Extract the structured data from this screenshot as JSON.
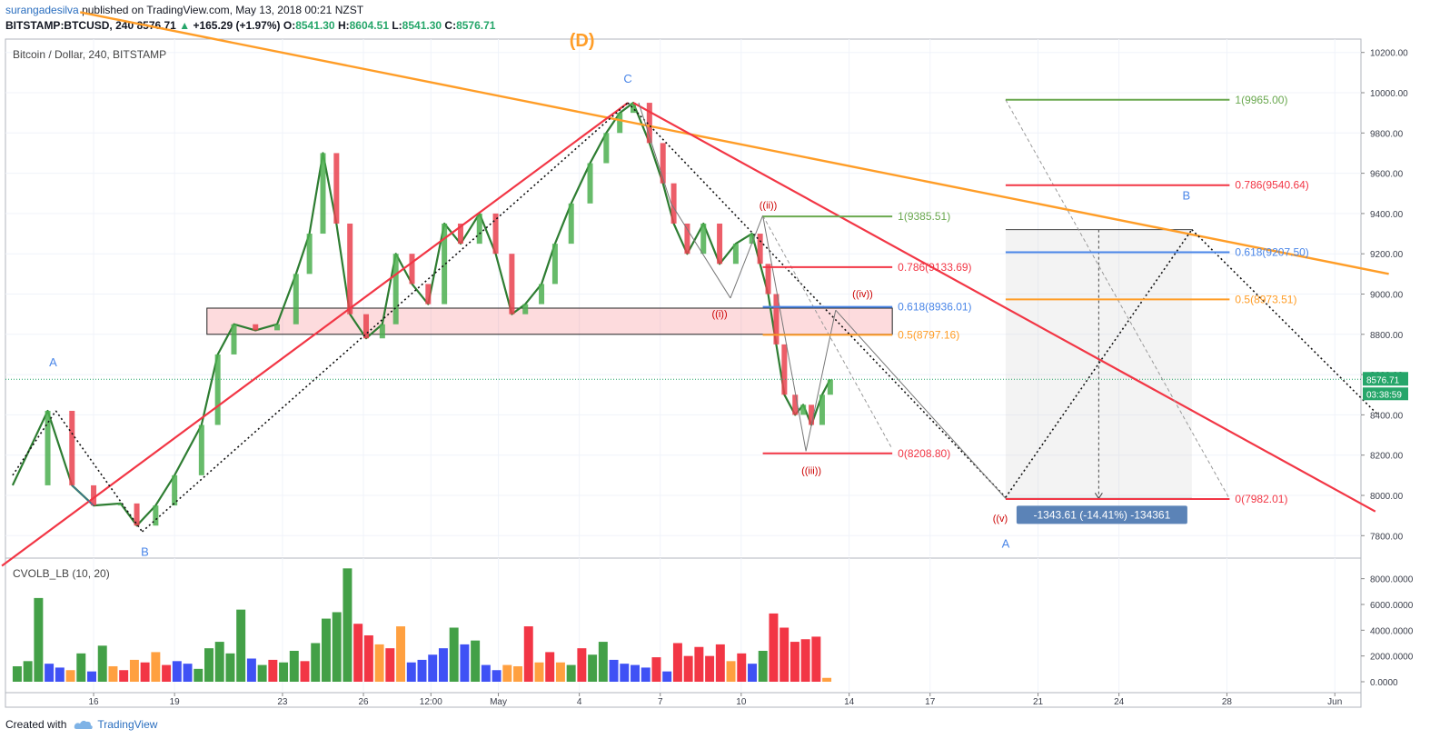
{
  "header": {
    "user": "surangadesilva",
    "published": "published on TradingView.com, May 13, 2018 00:21 NZST",
    "symbol": "BITSTAMP:BTCUSD, 240",
    "price": "8576.71",
    "arrow": "▲",
    "change": "+165.29 (+1.97%)",
    "o_label": "O:",
    "o_val": "8541.30",
    "h_label": "H:",
    "h_val": "8604.51",
    "l_label": "L:",
    "l_val": "8541.30",
    "c_label": "C:",
    "c_val": "8576.71"
  },
  "footer": {
    "created": "Created with",
    "brand": "TradingView",
    "logo_icon": "cloud-logo-icon"
  },
  "chart_data": {
    "type": "line",
    "title": "Bitcoin / Dollar, 240, BITSTAMP",
    "volume_title": "CVOLB_LB (10, 20)",
    "last_price": "8576.71",
    "countdown": "03:38:59",
    "ylim": [
      7700,
      10300
    ],
    "y_ticks": [
      "10200.00",
      "10000.00",
      "9800.00",
      "9600.00",
      "9400.00",
      "9200.00",
      "9000.00",
      "8800.00",
      "8600.00",
      "8400.00",
      "8200.00",
      "8000.00",
      "7800.00"
    ],
    "y_tick_values": [
      10200,
      10000,
      9800,
      9600,
      9400,
      9200,
      9000,
      8800,
      8600,
      8400,
      8200,
      8000,
      7800
    ],
    "vol_ylim": [
      0,
      9200
    ],
    "vol_ticks": [
      "8000.0000",
      "6000.0000",
      "4000.0000",
      "2000.0000",
      "0.0000"
    ],
    "vol_tick_values": [
      8000,
      6000,
      4000,
      2000,
      0
    ],
    "x_range_days": [
      12.8,
      32.9
    ],
    "x_ticks": [
      {
        "label": "16",
        "day": 16
      },
      {
        "label": "19",
        "day": 19
      },
      {
        "label": "23",
        "day": 23
      },
      {
        "label": "26",
        "day": 26
      },
      {
        "label": "12:00",
        "day": 28.5
      },
      {
        "label": "May",
        "day": 31
      },
      {
        "label": "4",
        "day": 34
      },
      {
        "label": "7",
        "day": 37
      },
      {
        "label": "10",
        "day": 40
      },
      {
        "label": "14",
        "day": 44
      },
      {
        "label": "17",
        "day": 47
      },
      {
        "label": "21",
        "day": 51
      },
      {
        "label": "24",
        "day": 54
      },
      {
        "label": "28",
        "day": 58
      },
      {
        "label": "Jun",
        "day": 62
      }
    ],
    "price_path": [
      [
        13.0,
        8050
      ],
      [
        14.3,
        8420
      ],
      [
        15.2,
        8050
      ],
      [
        16.0,
        7950
      ],
      [
        17.0,
        7960
      ],
      [
        17.6,
        7850
      ],
      [
        18.3,
        7950
      ],
      [
        19.0,
        8100
      ],
      [
        20.0,
        8350
      ],
      [
        20.6,
        8700
      ],
      [
        21.2,
        8850
      ],
      [
        22.0,
        8820
      ],
      [
        22.8,
        8850
      ],
      [
        23.5,
        9100
      ],
      [
        24.0,
        9300
      ],
      [
        24.5,
        9700
      ],
      [
        25.0,
        9350
      ],
      [
        25.5,
        8900
      ],
      [
        26.1,
        8780
      ],
      [
        26.7,
        8850
      ],
      [
        27.2,
        9200
      ],
      [
        27.8,
        9050
      ],
      [
        28.4,
        8950
      ],
      [
        29.0,
        9350
      ],
      [
        29.6,
        9250
      ],
      [
        30.3,
        9400
      ],
      [
        30.9,
        9200
      ],
      [
        31.5,
        8900
      ],
      [
        32.0,
        8950
      ],
      [
        32.6,
        9050
      ],
      [
        33.1,
        9250
      ],
      [
        33.7,
        9450
      ],
      [
        34.4,
        9650
      ],
      [
        35.0,
        9800
      ],
      [
        35.5,
        9900
      ],
      [
        36.0,
        9950
      ],
      [
        36.6,
        9750
      ],
      [
        37.1,
        9550
      ],
      [
        37.5,
        9350
      ],
      [
        38.0,
        9200
      ],
      [
        38.6,
        9350
      ],
      [
        39.2,
        9150
      ],
      [
        39.8,
        9250
      ],
      [
        40.4,
        9300
      ],
      [
        40.7,
        9150
      ],
      [
        41.0,
        9000
      ],
      [
        41.3,
        8750
      ],
      [
        41.6,
        8500
      ],
      [
        42.0,
        8400
      ],
      [
        42.3,
        8450
      ],
      [
        42.6,
        8350
      ],
      [
        43.0,
        8500
      ],
      [
        43.3,
        8576
      ]
    ],
    "volume": [
      {
        "v": 1200,
        "c": "g"
      },
      {
        "v": 1600,
        "c": "g"
      },
      {
        "v": 6500,
        "c": "g"
      },
      {
        "v": 1400,
        "c": "b"
      },
      {
        "v": 1100,
        "c": "b"
      },
      {
        "v": 900,
        "c": "o"
      },
      {
        "v": 2200,
        "c": "g"
      },
      {
        "v": 800,
        "c": "b"
      },
      {
        "v": 2800,
        "c": "g"
      },
      {
        "v": 1200,
        "c": "o"
      },
      {
        "v": 900,
        "c": "r"
      },
      {
        "v": 1700,
        "c": "o"
      },
      {
        "v": 1500,
        "c": "r"
      },
      {
        "v": 2300,
        "c": "o"
      },
      {
        "v": 1300,
        "c": "r"
      },
      {
        "v": 1600,
        "c": "b"
      },
      {
        "v": 1400,
        "c": "b"
      },
      {
        "v": 1000,
        "c": "g"
      },
      {
        "v": 2600,
        "c": "g"
      },
      {
        "v": 3100,
        "c": "g"
      },
      {
        "v": 2200,
        "c": "g"
      },
      {
        "v": 5600,
        "c": "g"
      },
      {
        "v": 1800,
        "c": "b"
      },
      {
        "v": 1300,
        "c": "g"
      },
      {
        "v": 1700,
        "c": "r"
      },
      {
        "v": 1500,
        "c": "g"
      },
      {
        "v": 2400,
        "c": "g"
      },
      {
        "v": 1600,
        "c": "r"
      },
      {
        "v": 3000,
        "c": "g"
      },
      {
        "v": 4900,
        "c": "g"
      },
      {
        "v": 5400,
        "c": "g"
      },
      {
        "v": 8800,
        "c": "g"
      },
      {
        "v": 4500,
        "c": "r"
      },
      {
        "v": 3600,
        "c": "r"
      },
      {
        "v": 2900,
        "c": "o"
      },
      {
        "v": 2600,
        "c": "r"
      },
      {
        "v": 4300,
        "c": "o"
      },
      {
        "v": 1500,
        "c": "b"
      },
      {
        "v": 1700,
        "c": "b"
      },
      {
        "v": 2100,
        "c": "b"
      },
      {
        "v": 2600,
        "c": "b"
      },
      {
        "v": 4200,
        "c": "g"
      },
      {
        "v": 2900,
        "c": "b"
      },
      {
        "v": 3200,
        "c": "g"
      },
      {
        "v": 1300,
        "c": "b"
      },
      {
        "v": 900,
        "c": "b"
      },
      {
        "v": 1300,
        "c": "o"
      },
      {
        "v": 1200,
        "c": "o"
      },
      {
        "v": 4300,
        "c": "r"
      },
      {
        "v": 1500,
        "c": "o"
      },
      {
        "v": 2300,
        "c": "r"
      },
      {
        "v": 1500,
        "c": "o"
      },
      {
        "v": 1300,
        "c": "g"
      },
      {
        "v": 2600,
        "c": "r"
      },
      {
        "v": 2100,
        "c": "g"
      },
      {
        "v": 3100,
        "c": "g"
      },
      {
        "v": 1700,
        "c": "b"
      },
      {
        "v": 1400,
        "c": "b"
      },
      {
        "v": 1300,
        "c": "b"
      },
      {
        "v": 1100,
        "c": "b"
      },
      {
        "v": 1900,
        "c": "r"
      },
      {
        "v": 800,
        "c": "b"
      },
      {
        "v": 3000,
        "c": "r"
      },
      {
        "v": 2000,
        "c": "r"
      },
      {
        "v": 2700,
        "c": "r"
      },
      {
        "v": 2000,
        "c": "r"
      },
      {
        "v": 2900,
        "c": "r"
      },
      {
        "v": 1600,
        "c": "o"
      },
      {
        "v": 2200,
        "c": "r"
      },
      {
        "v": 1400,
        "c": "b"
      },
      {
        "v": 2400,
        "c": "g"
      },
      {
        "v": 5300,
        "c": "r"
      },
      {
        "v": 4200,
        "c": "r"
      },
      {
        "v": 3100,
        "c": "r"
      },
      {
        "v": 3300,
        "c": "r"
      },
      {
        "v": 3500,
        "c": "r"
      },
      {
        "v": 300,
        "c": "o"
      }
    ],
    "trendlines": [
      {
        "color": "#ff9d27",
        "from": [
          15.5,
          10400
        ],
        "to": [
          64,
          9100
        ],
        "width": 2.4,
        "dash": ""
      },
      {
        "color": "#f23645",
        "from": [
          12.6,
          7650
        ],
        "to": [
          35.8,
          9950
        ],
        "width": 2.2,
        "dash": ""
      },
      {
        "color": "#f23645",
        "from": [
          36.0,
          9950
        ],
        "to": [
          63.5,
          7920
        ],
        "width": 2.2,
        "dash": ""
      },
      {
        "color": "#111111",
        "from": [
          13.0,
          8100
        ],
        "to": [
          14.6,
          8420
        ],
        "width": 1.6,
        "dash": "2,3"
      },
      {
        "color": "#111111",
        "from": [
          14.6,
          8420
        ],
        "to": [
          17.8,
          7820
        ],
        "width": 1.6,
        "dash": "2,3"
      },
      {
        "color": "#111111",
        "from": [
          17.8,
          7820
        ],
        "to": [
          35.8,
          9950
        ],
        "width": 1.6,
        "dash": "2,3"
      },
      {
        "color": "#111111",
        "from": [
          35.8,
          9950
        ],
        "to": [
          49.8,
          7990
        ],
        "width": 1.6,
        "dash": "2,3"
      },
      {
        "color": "#111111",
        "from": [
          49.8,
          7990
        ],
        "to": [
          56.7,
          9320
        ],
        "width": 1.6,
        "dash": "2,3"
      },
      {
        "color": "#111111",
        "from": [
          56.7,
          9320
        ],
        "to": [
          63.6,
          8400
        ],
        "width": 1.6,
        "dash": "2,3"
      },
      {
        "color": "#777777",
        "from": [
          36.2,
          9950
        ],
        "to": [
          37.4,
          9450
        ],
        "width": 1.0,
        "dash": ""
      },
      {
        "color": "#777777",
        "from": [
          37.4,
          9450
        ],
        "to": [
          39.6,
          8980
        ],
        "width": 1.0,
        "dash": ""
      },
      {
        "color": "#777777",
        "from": [
          39.6,
          8980
        ],
        "to": [
          40.8,
          9390
        ],
        "width": 1.0,
        "dash": ""
      },
      {
        "color": "#777777",
        "from": [
          40.8,
          9390
        ],
        "to": [
          42.4,
          8220
        ],
        "width": 1.0,
        "dash": ""
      },
      {
        "color": "#777777",
        "from": [
          42.4,
          8220
        ],
        "to": [
          43.5,
          8920
        ],
        "width": 1.0,
        "dash": ""
      },
      {
        "color": "#777777",
        "from": [
          43.5,
          8920
        ],
        "to": [
          49.8,
          7985
        ],
        "width": 1.0,
        "dash": ""
      },
      {
        "color": "#999999",
        "from": [
          40.8,
          9390
        ],
        "to": [
          45.6,
          8230
        ],
        "width": 1.0,
        "dash": "4,3"
      },
      {
        "color": "#999999",
        "from": [
          49.8,
          9965
        ],
        "to": [
          58.1,
          7982
        ],
        "width": 1.0,
        "dash": "4,3"
      },
      {
        "color": "#3d6fb6",
        "from": [
          15.2,
          8050
        ],
        "to": [
          16.0,
          7950
        ],
        "width": 1.0,
        "dash": ""
      }
    ],
    "zone": {
      "from_day": 20.2,
      "to_day": 45.6,
      "top": 8930,
      "bottom": 8800
    },
    "fib_left": [
      {
        "label": "1(9385.51)",
        "value": 9385.51,
        "from": 40.8,
        "to": 45.6,
        "color": "#6aa84f"
      },
      {
        "label": "0.786(9133.69)",
        "value": 9133.69,
        "from": 40.8,
        "to": 45.6,
        "color": "#f23645"
      },
      {
        "label": "0.618(8936.01)",
        "value": 8936.01,
        "from": 40.8,
        "to": 45.6,
        "color": "#4a86e8"
      },
      {
        "label": "0.5(8797.16)",
        "value": 8797.16,
        "from": 40.8,
        "to": 45.6,
        "color": "#ff9d27"
      },
      {
        "label": "0(8208.80)",
        "value": 8208.8,
        "from": 40.8,
        "to": 45.6,
        "color": "#f23645"
      }
    ],
    "fib_right": [
      {
        "label": "1(9965.00)",
        "value": 9965.0,
        "from": 49.8,
        "to": 58.1,
        "color": "#6aa84f"
      },
      {
        "label": "0.786(9540.64)",
        "value": 9540.64,
        "from": 49.8,
        "to": 58.1,
        "color": "#f23645"
      },
      {
        "label": "0.618(9207.50)",
        "value": 9207.5,
        "from": 49.8,
        "to": 58.1,
        "color": "#4a86e8"
      },
      {
        "label": "0.5(8973.51)",
        "value": 8973.51,
        "from": 49.8,
        "to": 58.1,
        "color": "#ff9d27"
      },
      {
        "label": "0(7982.01)",
        "value": 7982.01,
        "from": 49.8,
        "to": 58.1,
        "color": "#f23645"
      }
    ],
    "measure_box": {
      "from_day": 49.8,
      "to_day": 56.7,
      "top": 9320,
      "bottom": 7985,
      "label": "-1343.61 (-14.41%) -134361"
    },
    "annotations": [
      {
        "text": "(D)",
        "day": 34.1,
        "value": 10230,
        "color": "#ff9d27",
        "size": 20,
        "bold": true
      },
      {
        "text": "C",
        "day": 35.8,
        "value": 10050,
        "color": "#4a86e8",
        "size": 13,
        "bold": false
      },
      {
        "text": "A",
        "day": 14.5,
        "value": 8640,
        "color": "#4a86e8",
        "size": 13,
        "bold": false
      },
      {
        "text": "B",
        "day": 17.9,
        "value": 7700,
        "color": "#4a86e8",
        "size": 13,
        "bold": false
      },
      {
        "text": "((ii))",
        "day": 41.0,
        "value": 9425,
        "color": "#cc0000",
        "size": 11,
        "bold": false
      },
      {
        "text": "((i))",
        "day": 39.2,
        "value": 8885,
        "color": "#cc0000",
        "size": 11,
        "bold": false
      },
      {
        "text": "((iv))",
        "day": 44.5,
        "value": 8985,
        "color": "#cc0000",
        "size": 11,
        "bold": false
      },
      {
        "text": "((iii))",
        "day": 42.6,
        "value": 8105,
        "color": "#cc0000",
        "size": 11,
        "bold": false
      },
      {
        "text": "((v)",
        "day": 49.6,
        "value": 7870,
        "color": "#cc0000",
        "size": 11,
        "bold": false
      },
      {
        "text": "A",
        "day": 49.8,
        "value": 7740,
        "color": "#4a86e8",
        "size": 13,
        "bold": false
      },
      {
        "text": "B",
        "day": 56.5,
        "value": 9470,
        "color": "#4a86e8",
        "size": 13,
        "bold": false
      }
    ],
    "grid": true
  }
}
